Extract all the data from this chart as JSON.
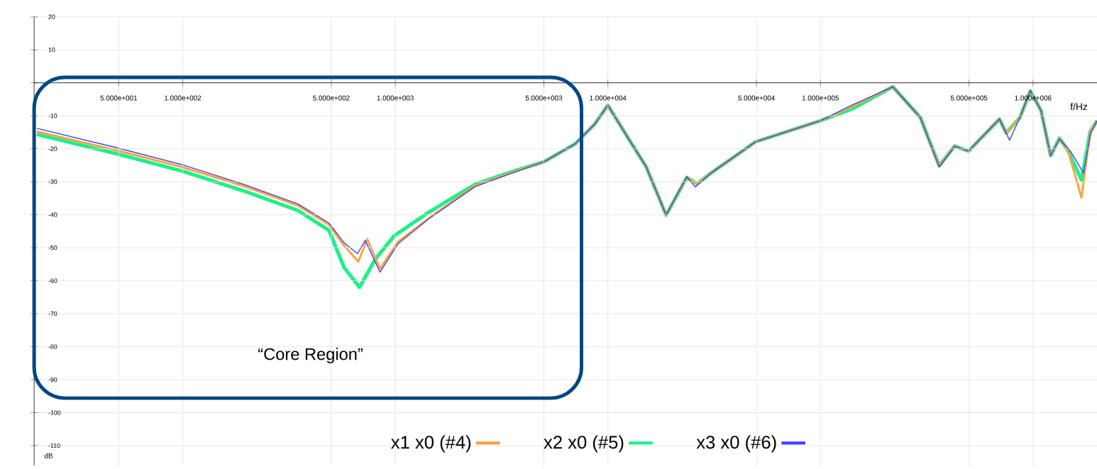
{
  "chart_data": {
    "type": "line",
    "xlabel": "f/Hz",
    "ylabel": "dB",
    "log": "x",
    "xlim": [
      20,
      2000000
    ],
    "ylim": [
      -116,
      20
    ],
    "xticks": [
      {
        "value": 50,
        "label": "5.000e+001"
      },
      {
        "value": 100,
        "label": "1.000e+002"
      },
      {
        "value": 500,
        "label": "5.000e+002"
      },
      {
        "value": 1000,
        "label": "1.000e+003"
      },
      {
        "value": 5000,
        "label": "5.000e+003"
      },
      {
        "value": 10000,
        "label": "1.000e+004"
      },
      {
        "value": 50000,
        "label": "5.000e+004"
      },
      {
        "value": 100000,
        "label": "1.000e+005"
      },
      {
        "value": 500000,
        "label": "5.000e+005"
      },
      {
        "value": 1000000,
        "label": "1.000e+006"
      }
    ],
    "yticks": [
      20,
      10,
      {
        "value": 0,
        "label": null
      },
      -10,
      -20,
      -30,
      -40,
      -50,
      -60,
      -70,
      -80,
      -90,
      -100,
      -110
    ],
    "grid": true,
    "legend": "bottom",
    "line_style": "solid",
    "annotations": [
      "“Core Region”"
    ],
    "series": [
      {
        "name": "x1 x0 (#4)",
        "color": "#ffa040",
        "x": [
          20.6,
          49,
          100,
          194,
          348,
          487,
          574,
          670,
          738,
          847,
          1030,
          1440,
          2370,
          3600,
          5020,
          7020,
          8650,
          10000,
          12500,
          15100,
          18800,
          23500,
          26300,
          30500,
          49500,
          100000,
          140000,
          219000,
          295000,
          362000,
          428000,
          497000,
          695000,
          748000,
          868000,
          971000,
          1090000,
          1210000,
          1330000,
          1460000,
          1690000,
          1860000,
          2000000
        ],
        "values": [
          -14.8,
          -20.5,
          -25.6,
          -31.3,
          -37.2,
          -43,
          -49.4,
          -54.2,
          -47.4,
          -56.4,
          -48.2,
          -41,
          -31.2,
          -27,
          -23.9,
          -18.5,
          -12.6,
          -6.8,
          -16.9,
          -25.3,
          -40.1,
          -28.7,
          -30.6,
          -27.4,
          -17.9,
          -11.5,
          -7.3,
          -1.2,
          -10.5,
          -25.1,
          -19.2,
          -20.7,
          -11,
          -15.2,
          -10.5,
          -2.5,
          -8.4,
          -22.1,
          -16.8,
          -20.5,
          -34.8,
          -14.7,
          -11.5
        ]
      },
      {
        "name": "x2 x0 (#5)",
        "color": "#1ef08a",
        "x": [
          20.6,
          49,
          100,
          194,
          348,
          487,
          574,
          679,
          802,
          988,
          1440,
          2370,
          3600,
          5020,
          7020,
          8650,
          10000,
          12500,
          15100,
          18800,
          23500,
          26300,
          30500,
          49500,
          100000,
          140000,
          219000,
          295000,
          362000,
          428000,
          497000,
          695000,
          748000,
          868000,
          971000,
          1090000,
          1210000,
          1330000,
          1460000,
          1690000,
          1860000,
          2000000
        ],
        "values": [
          -15.6,
          -21.5,
          -26.8,
          -32.8,
          -38.7,
          -44.7,
          -56,
          -62,
          -53.6,
          -46.4,
          -39.2,
          -30.8,
          -26.8,
          -23.9,
          -18.5,
          -12.6,
          -6.8,
          -16.9,
          -25.3,
          -40.1,
          -28.7,
          -30.6,
          -27.4,
          -17.9,
          -11.5,
          -8,
          -1.2,
          -10.5,
          -25.1,
          -19.2,
          -20.7,
          -11,
          -15.2,
          -10.5,
          -2.5,
          -8.4,
          -22.1,
          -16.8,
          -20.5,
          -29.5,
          -14.7,
          -11.5
        ]
      },
      {
        "name": "x3 x0 (#6)",
        "color": "#4040ff",
        "x": [
          20.6,
          49,
          100,
          194,
          348,
          487,
          574,
          664,
          722,
          847,
          1030,
          1440,
          2370,
          3600,
          5020,
          7020,
          8650,
          10000,
          12500,
          15100,
          18800,
          23500,
          25800,
          30500,
          49500,
          100000,
          140000,
          219000,
          295000,
          362000,
          428000,
          497000,
          695000,
          776000,
          868000,
          971000,
          1090000,
          1210000,
          1330000,
          1510000,
          1730000,
          1860000,
          2000000
        ],
        "values": [
          -13.8,
          -19.7,
          -24.9,
          -30.8,
          -36.7,
          -42.5,
          -48.5,
          -51.8,
          -47.8,
          -57.4,
          -48.8,
          -41.2,
          -31.5,
          -27.2,
          -23.9,
          -18.5,
          -12.6,
          -6.8,
          -16.9,
          -25.3,
          -40.1,
          -28.5,
          -31.6,
          -27.4,
          -17.9,
          -11.5,
          -6.8,
          -1.2,
          -10.5,
          -25.5,
          -19.2,
          -20.7,
          -11,
          -17.4,
          -10.5,
          -2.3,
          -8.4,
          -22.1,
          -17,
          -21,
          -27.4,
          -15.5,
          -11.5
        ]
      }
    ]
  }
}
